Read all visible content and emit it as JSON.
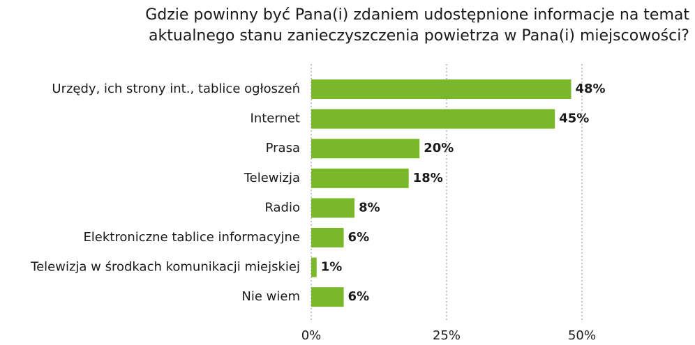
{
  "chart_data": {
    "type": "bar",
    "orientation": "horizontal",
    "title": [
      "Gdzie powinny być Pana(i) zdaniem udostępnione informacje na temat",
      "aktualnego stanu zanieczyszczenia powietrza w Pana(i) miejscowości?"
    ],
    "categories": [
      "Urzędy, ich strony int., tablice ogłoszeń",
      "Internet",
      "Prasa",
      "Telewizja",
      "Radio",
      "Elektroniczne tablice informacyjne",
      "Telewizja w środkach komunikacji miejskiej",
      "Nie wiem"
    ],
    "values": [
      48,
      45,
      20,
      18,
      8,
      6,
      1,
      6
    ],
    "value_labels": [
      "48%",
      "45%",
      "20%",
      "18%",
      "8%",
      "6%",
      "1%",
      "6%"
    ],
    "color": "#78b82a",
    "xlim": [
      0,
      50
    ],
    "xticks": [
      {
        "value": 0,
        "label": "0%"
      },
      {
        "value": 25,
        "label": "25%"
      },
      {
        "value": 50,
        "label": "50%"
      }
    ],
    "grid": true
  }
}
